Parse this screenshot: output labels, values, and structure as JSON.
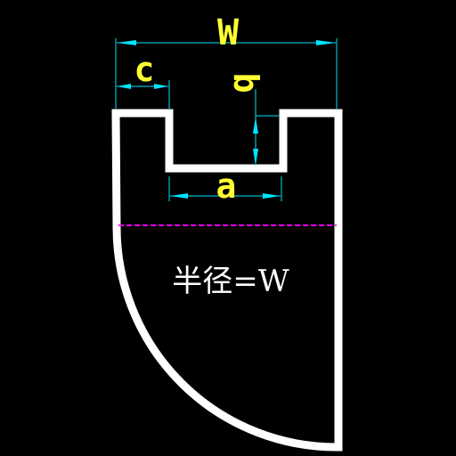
{
  "drawing": {
    "labels": {
      "width": "W",
      "top_edge": "c",
      "slot_depth": "b",
      "slot_width": "a",
      "radius_note": "半径=W"
    },
    "colors": {
      "background": "#000000",
      "outline": "#ffffff",
      "dimension": "#00e5ff",
      "label": "#ffff33",
      "centerline": "#ff00ff",
      "note": "#ffffff"
    }
  }
}
